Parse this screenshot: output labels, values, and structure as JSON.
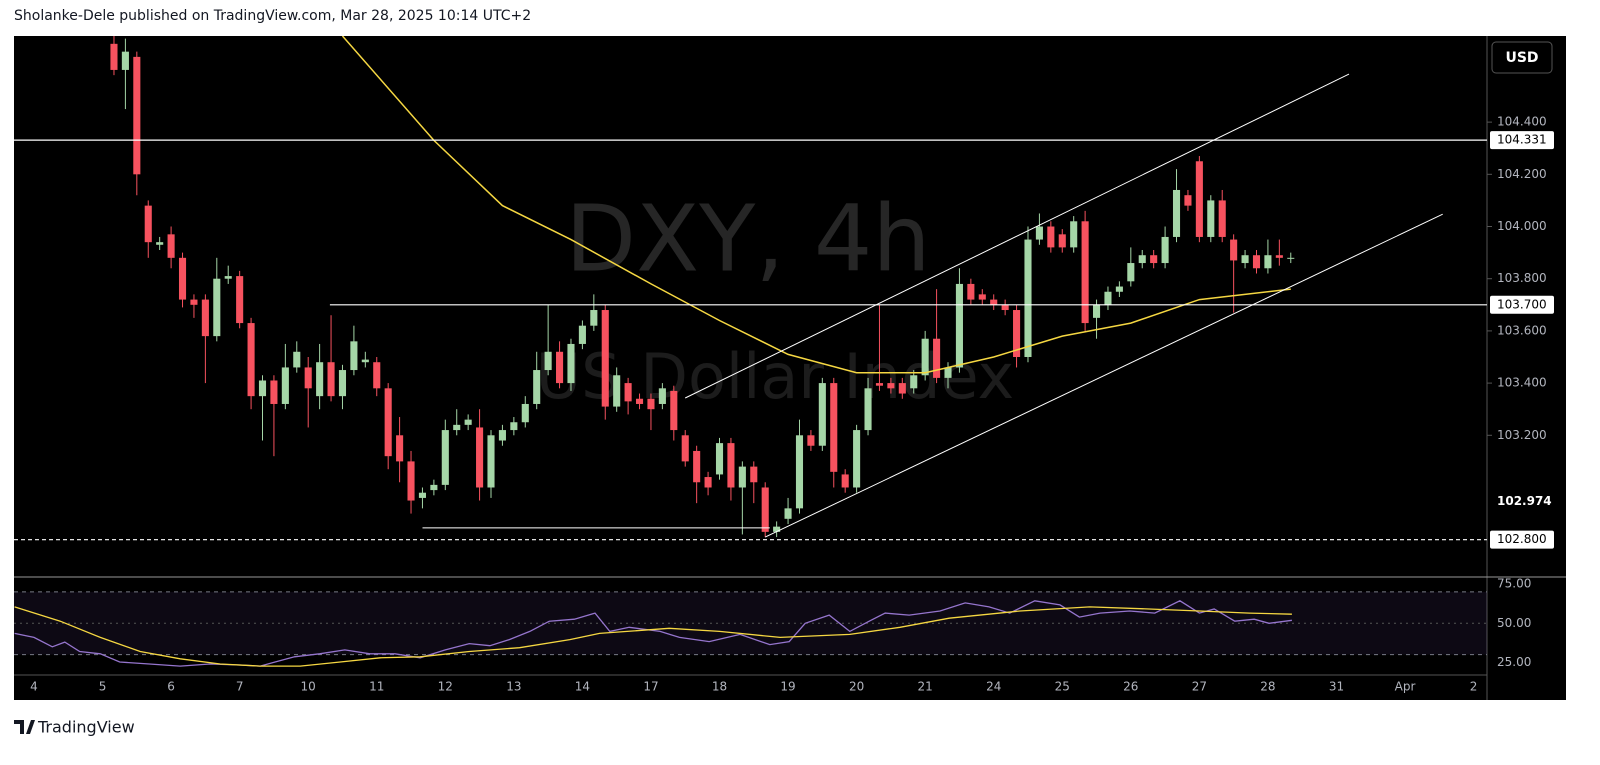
{
  "header": "Sholanke-Dele published on TradingView.com, Mar 28, 2025 10:14 UTC+2",
  "footer": "TradingView",
  "currency_button": "USD",
  "chart_data": [
    {
      "type": "candlestick",
      "title": "DXY, 4h",
      "subtitle": "US Dollar Index",
      "up_color": "#a5d6a7",
      "down_color": "#f7525f",
      "xlim": [
        -1.75,
        127
      ],
      "ylim": [
        102.657,
        104.73
      ],
      "yticks": [
        {
          "value": 104.4,
          "label": "104.400"
        },
        {
          "value": 104.2,
          "label": "104.200"
        },
        {
          "value": 104.0,
          "label": "104.000"
        },
        {
          "value": 103.8,
          "label": "103.800"
        },
        {
          "value": 103.6,
          "label": "103.600"
        },
        {
          "value": 103.4,
          "label": "103.400"
        },
        {
          "value": 103.2,
          "label": "103.200"
        }
      ],
      "x": [
        7,
        8,
        9,
        10,
        11,
        12,
        13,
        14,
        15,
        16,
        17,
        18,
        19,
        20,
        21,
        22,
        23,
        24,
        25,
        26,
        27,
        28,
        29,
        30,
        31,
        32,
        33,
        34,
        35,
        36,
        37,
        38,
        39,
        40,
        41,
        42,
        43,
        44,
        45,
        46,
        47,
        48,
        49,
        50,
        51,
        52,
        53,
        54,
        55,
        56,
        57,
        58,
        59,
        60,
        61,
        62,
        63,
        64,
        65,
        66,
        67,
        68,
        69,
        70,
        71,
        72,
        73,
        74,
        75,
        76,
        77,
        78,
        79,
        80,
        81,
        82,
        83,
        84,
        85,
        86,
        87,
        88,
        89,
        90,
        91,
        92,
        93,
        94,
        95,
        96,
        97,
        98,
        99,
        100,
        101,
        102,
        103,
        104,
        105,
        106,
        107,
        108,
        109,
        110
      ],
      "open": [
        104.7,
        104.6,
        104.65,
        104.08,
        103.93,
        103.97,
        103.88,
        103.72,
        103.72,
        103.58,
        103.8,
        103.81,
        103.63,
        103.35,
        103.41,
        103.32,
        103.46,
        103.46,
        103.35,
        103.48,
        103.35,
        103.45,
        103.48,
        103.48,
        103.38,
        103.2,
        103.1,
        102.96,
        102.99,
        103.01,
        103.22,
        103.24,
        103.23,
        103.0,
        103.18,
        103.22,
        103.25,
        103.32,
        103.45,
        103.52,
        103.4,
        103.55,
        103.62,
        103.68,
        103.31,
        103.4,
        103.34,
        103.34,
        103.32,
        103.37,
        103.2,
        103.14,
        103.04,
        103.05,
        103.17,
        103.0,
        103.08,
        103.0,
        102.83,
        102.88,
        102.92,
        103.2,
        103.16,
        103.4,
        103.05,
        103.0,
        103.22,
        103.4,
        103.4,
        103.4,
        103.38,
        103.43,
        103.57,
        103.42,
        103.46,
        103.78,
        103.74,
        103.72,
        103.7,
        103.68,
        103.5,
        103.95,
        104.0,
        103.97,
        103.92,
        104.02,
        103.65,
        103.7,
        103.75,
        103.79,
        103.86,
        103.89,
        103.86,
        103.96,
        104.12,
        104.25,
        103.96,
        104.1,
        103.95,
        103.86,
        103.89,
        103.84,
        103.89,
        103.88
      ],
      "high": [
        104.73,
        104.72,
        104.67,
        104.1,
        103.96,
        104.0,
        103.9,
        103.74,
        103.74,
        103.88,
        103.85,
        103.83,
        103.65,
        103.43,
        103.43,
        103.55,
        103.56,
        103.5,
        103.55,
        103.66,
        103.47,
        103.62,
        103.52,
        103.5,
        103.4,
        103.27,
        103.14,
        103.0,
        103.03,
        103.26,
        103.3,
        103.28,
        103.3,
        103.22,
        103.24,
        103.27,
        103.35,
        103.52,
        103.7,
        103.56,
        103.57,
        103.64,
        103.74,
        103.7,
        103.46,
        103.42,
        103.36,
        103.36,
        103.4,
        103.39,
        103.22,
        103.16,
        103.06,
        103.19,
        103.19,
        103.1,
        103.1,
        103.02,
        102.87,
        102.96,
        103.26,
        103.22,
        103.42,
        103.42,
        103.07,
        103.24,
        103.42,
        103.7,
        103.42,
        103.42,
        103.45,
        103.6,
        103.76,
        103.48,
        103.84,
        103.8,
        103.76,
        103.74,
        103.72,
        103.7,
        104.0,
        104.05,
        104.02,
        103.99,
        104.04,
        104.06,
        103.72,
        103.77,
        103.79,
        103.92,
        103.91,
        103.91,
        104.0,
        104.22,
        104.14,
        104.27,
        104.12,
        104.14,
        103.97,
        103.91,
        103.91,
        103.95,
        103.95,
        103.9
      ],
      "low": [
        104.58,
        104.45,
        104.12,
        103.88,
        103.91,
        103.84,
        103.69,
        103.65,
        103.4,
        103.56,
        103.78,
        103.61,
        103.3,
        103.18,
        103.12,
        103.3,
        103.44,
        103.23,
        103.3,
        103.33,
        103.3,
        103.43,
        103.46,
        103.35,
        103.07,
        103.02,
        102.9,
        102.92,
        102.97,
        102.99,
        103.2,
        103.22,
        102.95,
        102.96,
        103.16,
        103.2,
        103.23,
        103.3,
        103.43,
        103.38,
        103.37,
        103.53,
        103.6,
        103.26,
        103.29,
        103.28,
        103.3,
        103.22,
        103.3,
        103.18,
        103.08,
        102.94,
        102.97,
        103.03,
        102.95,
        102.82,
        102.94,
        102.81,
        102.81,
        102.86,
        102.9,
        103.14,
        103.14,
        103.0,
        102.98,
        102.98,
        103.2,
        103.37,
        103.36,
        103.34,
        103.36,
        103.41,
        103.4,
        103.38,
        103.44,
        103.7,
        103.7,
        103.68,
        103.66,
        103.46,
        103.48,
        103.93,
        103.9,
        103.9,
        103.9,
        103.6,
        103.57,
        103.68,
        103.73,
        103.77,
        103.84,
        103.84,
        103.84,
        103.94,
        104.06,
        103.94,
        103.94,
        103.94,
        103.67,
        103.84,
        103.82,
        103.82,
        103.85,
        103.86
      ],
      "close": [
        104.6,
        104.67,
        104.2,
        103.94,
        103.94,
        103.88,
        103.72,
        103.7,
        103.58,
        103.8,
        103.81,
        103.63,
        103.35,
        103.41,
        103.32,
        103.46,
        103.52,
        103.38,
        103.48,
        103.35,
        103.45,
        103.56,
        103.49,
        103.38,
        103.12,
        103.1,
        102.95,
        102.98,
        103.01,
        103.22,
        103.24,
        103.26,
        103.0,
        103.2,
        103.22,
        103.25,
        103.32,
        103.45,
        103.52,
        103.4,
        103.55,
        103.62,
        103.68,
        103.31,
        103.43,
        103.33,
        103.32,
        103.3,
        103.38,
        103.22,
        103.1,
        103.02,
        103.0,
        103.17,
        103.0,
        103.08,
        103.02,
        102.83,
        102.85,
        102.92,
        103.2,
        103.16,
        103.4,
        103.06,
        103.0,
        103.22,
        103.38,
        103.39,
        103.38,
        103.36,
        103.43,
        103.57,
        103.42,
        103.46,
        103.78,
        103.72,
        103.72,
        103.7,
        103.68,
        103.5,
        103.95,
        104.0,
        103.92,
        103.92,
        104.02,
        103.63,
        103.7,
        103.75,
        103.77,
        103.86,
        103.89,
        103.86,
        103.96,
        104.14,
        104.08,
        103.96,
        104.1,
        103.96,
        103.87,
        103.89,
        103.84,
        103.89,
        103.88,
        103.88
      ],
      "moving_average": {
        "color": "#f5d742",
        "x": [
          27,
          35,
          41,
          47,
          54,
          60,
          66,
          72,
          78,
          84,
          90,
          96,
          102,
          110
        ],
        "values": [
          104.73,
          104.33,
          104.08,
          103.95,
          103.78,
          103.64,
          103.51,
          103.44,
          103.44,
          103.5,
          103.58,
          103.63,
          103.72,
          103.76
        ]
      },
      "trend_lines": [
        {
          "color": "#ffffff",
          "x": [
            57,
            115.1
          ],
          "values": [
            103.343,
            104.584
          ]
        },
        {
          "color": "#ffffff",
          "x": [
            64,
            123.3
          ],
          "values": [
            102.81,
            104.047
          ]
        },
        {
          "color": "#ffffff",
          "x": [
            34,
            64.4
          ],
          "values": [
            102.845,
            102.845
          ]
        }
      ],
      "horizontal_lines": [
        {
          "value": 104.331,
          "label": "104.331",
          "style": "solid",
          "x_start": -1.75
        },
        {
          "value": 103.7,
          "label": "103.700",
          "style": "solid",
          "x_start": 25.9
        },
        {
          "value": 102.8,
          "label": "102.800",
          "style": "dashed",
          "x_start": -1.75
        }
      ],
      "current_price": {
        "value": 102.974,
        "label": "102.974"
      }
    },
    {
      "type": "line",
      "xlim": [
        -1.75,
        127
      ],
      "ylim": [
        17,
        79.5
      ],
      "yticks": [
        {
          "value": 75,
          "label": "75.00"
        },
        {
          "value": 50,
          "label": "50.00"
        },
        {
          "value": 25,
          "label": "25.00"
        }
      ],
      "band": [
        30,
        70
      ],
      "band_color": "#7e57c2",
      "xticks": [
        {
          "value": 0,
          "label": "4"
        },
        {
          "value": 6,
          "label": "5"
        },
        {
          "value": 12,
          "label": "6"
        },
        {
          "value": 18,
          "label": "7"
        },
        {
          "value": 24,
          "label": "10"
        },
        {
          "value": 30,
          "label": "11"
        },
        {
          "value": 36,
          "label": "12"
        },
        {
          "value": 42,
          "label": "13"
        },
        {
          "value": 48,
          "label": "14"
        },
        {
          "value": 54,
          "label": "17"
        },
        {
          "value": 60,
          "label": "18"
        },
        {
          "value": 66,
          "label": "19"
        },
        {
          "value": 72,
          "label": "20"
        },
        {
          "value": 78,
          "label": "21"
        },
        {
          "value": 84,
          "label": "24"
        },
        {
          "value": 90,
          "label": "25"
        },
        {
          "value": 96,
          "label": "26"
        },
        {
          "value": 102,
          "label": "27"
        },
        {
          "value": 108,
          "label": "28"
        },
        {
          "value": 114,
          "label": "31"
        },
        {
          "value": 120,
          "label": "Apr"
        },
        {
          "value": 126,
          "label": "2"
        }
      ],
      "series": [
        {
          "color": "#9575cd",
          "x": [
            -1.7,
            0,
            1.6,
            2.7,
            4,
            5.8,
            7.5,
            10.1,
            12.8,
            15.4,
            18,
            19.8,
            21.1,
            22.8,
            25,
            27.2,
            29.4,
            31.6,
            33.8,
            36,
            38.1,
            39.9,
            41.6,
            43.4,
            45.1,
            47.3,
            49.1,
            50.4,
            52.1,
            54.8,
            56.5,
            59.1,
            61.8,
            64.4,
            66.1,
            67.5,
            69.6,
            71.4,
            73.1,
            74.5,
            76.6,
            79.3,
            81.5,
            83.6,
            85.4,
            87.6,
            89.8,
            91.5,
            93.3,
            95.9,
            98.1,
            100.3,
            102,
            103.3,
            105.1,
            106.8,
            108.1,
            110.1
          ],
          "values": [
            43.5,
            41,
            35,
            38,
            32,
            30.5,
            25.3,
            24,
            22.7,
            24,
            23.4,
            22.7,
            25.3,
            28.6,
            30.5,
            33,
            30.5,
            30.5,
            28,
            33,
            37,
            35.7,
            39.6,
            44.8,
            51.3,
            52.6,
            56.5,
            44.8,
            47.4,
            44.8,
            41,
            38.3,
            42.9,
            36.4,
            38.3,
            50,
            55.2,
            44.8,
            51.3,
            56.5,
            55.2,
            57.8,
            63,
            60.4,
            56.5,
            64.3,
            61.7,
            53.9,
            56.5,
            57.8,
            56.5,
            64.3,
            56.5,
            59.1,
            51.3,
            52.6,
            50,
            51.9
          ]
        },
        {
          "color": "#f5d742",
          "x": [
            -1.7,
            2.3,
            5.8,
            9.3,
            12.8,
            16.3,
            19.8,
            23.3,
            26.8,
            30.3,
            33.8,
            38.1,
            42.5,
            46.9,
            49.5,
            55.6,
            60,
            65.3,
            71.4,
            75.8,
            80.1,
            86.3,
            92.4,
            97.6,
            102,
            106.4,
            110.1
          ],
          "values": [
            60.4,
            51.3,
            41,
            32,
            27.3,
            24,
            22.7,
            22.7,
            25.3,
            28,
            28.6,
            32,
            34.4,
            39.6,
            43.5,
            46.8,
            44.8,
            41,
            42.9,
            47.4,
            53.2,
            57.8,
            60.4,
            59.1,
            57.8,
            56.5,
            55.8
          ]
        }
      ]
    }
  ]
}
